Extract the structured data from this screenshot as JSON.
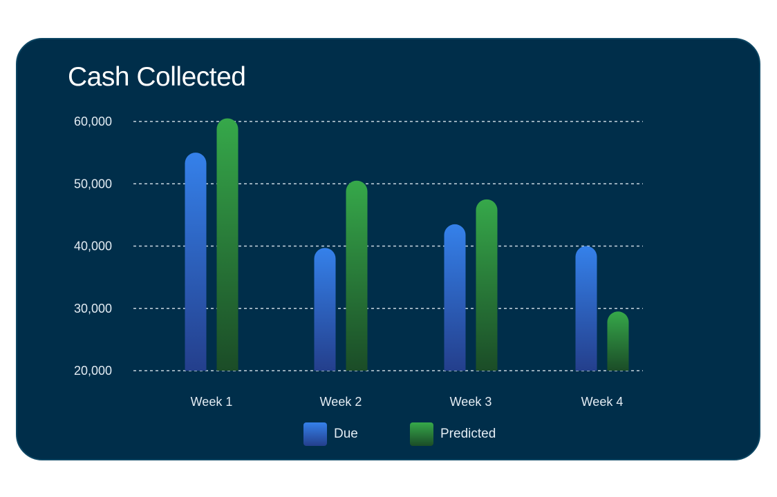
{
  "chart_data": {
    "type": "bar",
    "title": "Cash Collected",
    "categories": [
      "Week 1",
      "Week 2",
      "Week 3",
      "Week 4"
    ],
    "series": [
      {
        "name": "Due",
        "values": [
          55000,
          39700,
          43500,
          40000
        ],
        "color_top": "#3581ea",
        "color_bottom": "#243f8c"
      },
      {
        "name": "Predicted",
        "values": [
          60500,
          50500,
          47500,
          29500
        ],
        "color_top": "#36a84a",
        "color_bottom": "#1b4c27"
      }
    ],
    "ylim": [
      20000,
      60000
    ],
    "yticks": [
      "60,000",
      "50,000",
      "40,000",
      "30,000",
      "20,000"
    ],
    "ytick_values": [
      60000,
      50000,
      40000,
      30000,
      20000
    ],
    "grid": true,
    "legend_position": "bottom-center",
    "xlabel": "",
    "ylabel": ""
  },
  "colors": {
    "card_background": "#002e4a",
    "gridline": "#c9d6e0",
    "text": "#e3ecf3"
  }
}
